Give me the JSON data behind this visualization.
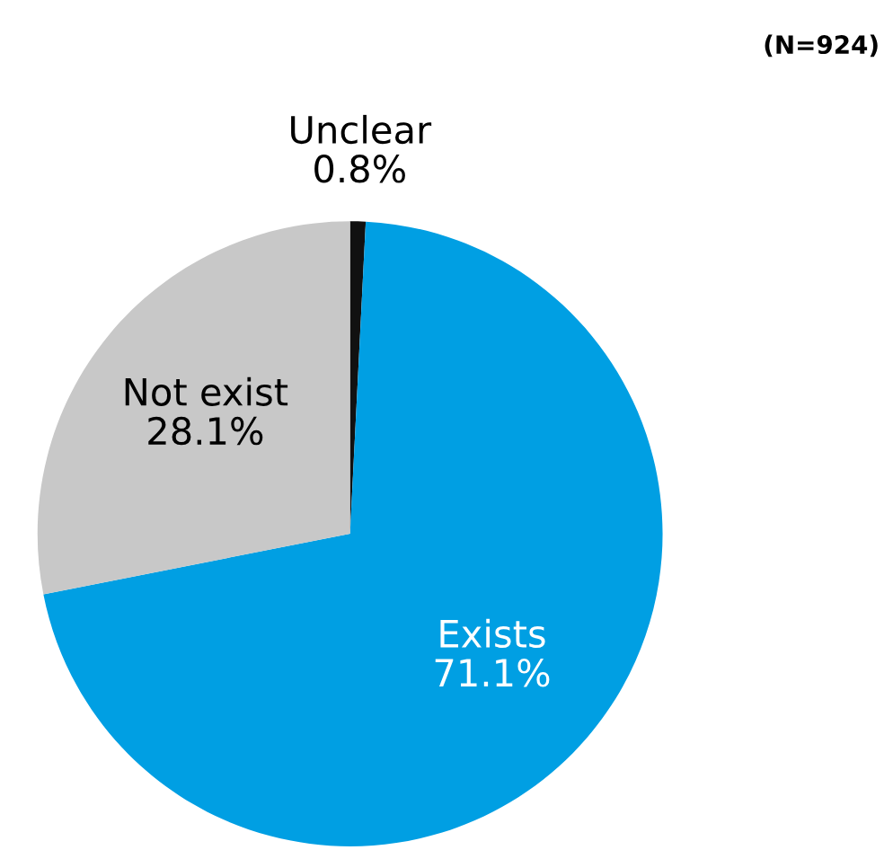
{
  "chart_data": {
    "type": "pie",
    "categories": [
      "Unclear",
      "Exists",
      "Not exist"
    ],
    "values": [
      0.8,
      71.1,
      28.1
    ],
    "value_labels": [
      "0.8%",
      "71.1%",
      "28.1%"
    ],
    "colors": [
      "#111111",
      "#009fe3",
      "#c8c8c8"
    ],
    "annotations": [
      "(N=924)"
    ],
    "legend": false
  }
}
